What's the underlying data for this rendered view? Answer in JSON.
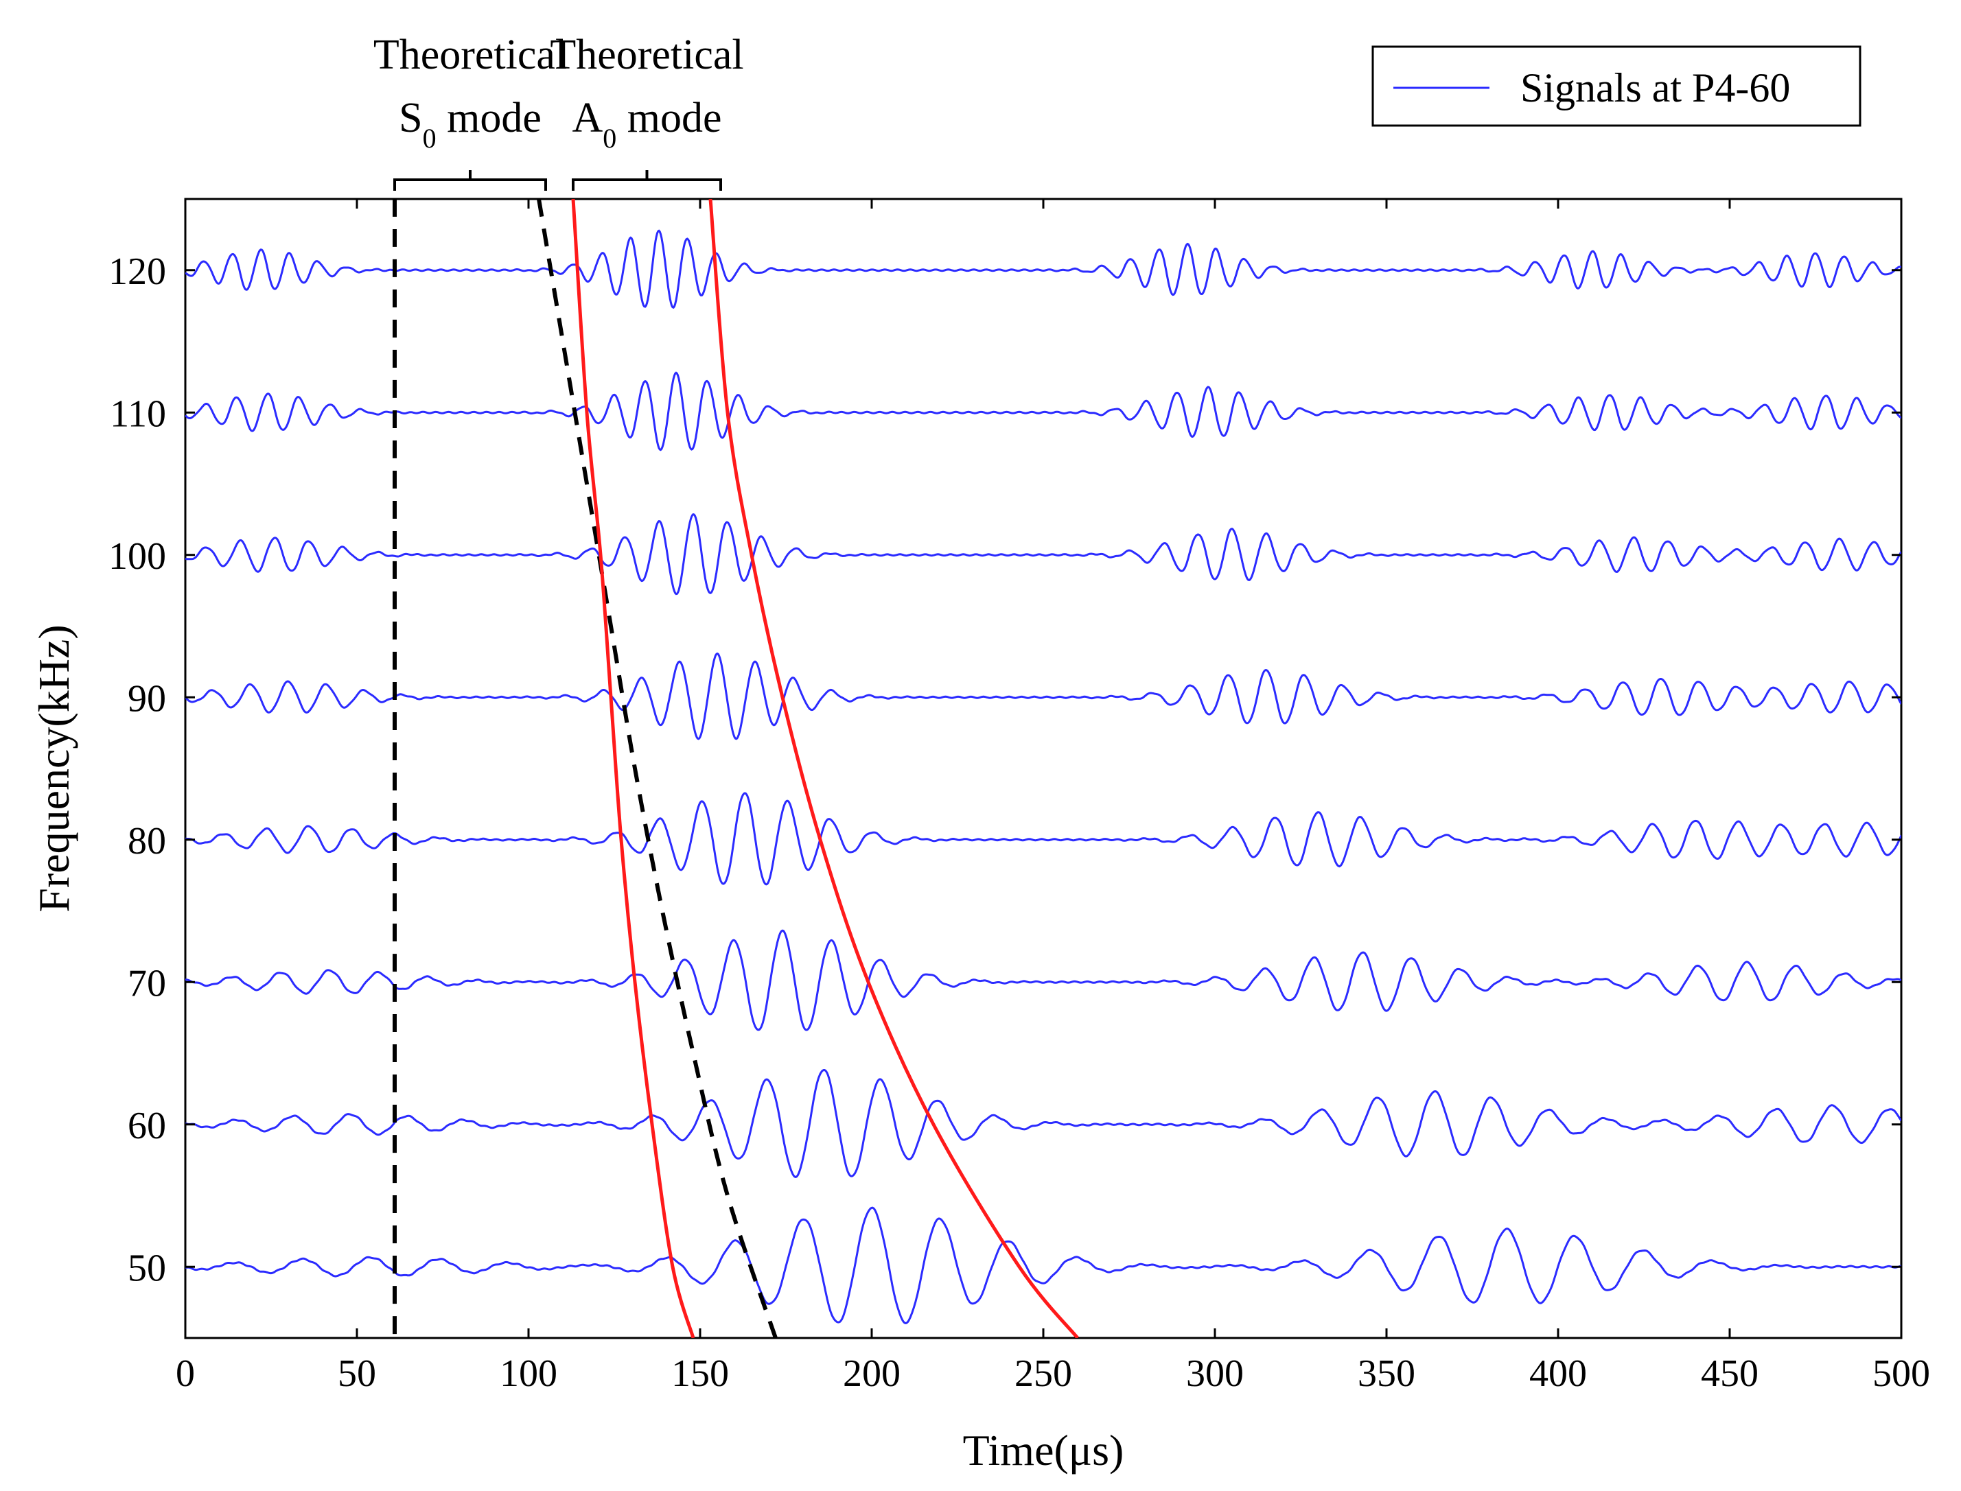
{
  "chart_data": {
    "type": "line",
    "title": "",
    "xlabel": "Time(μs)",
    "ylabel": "Frequency(kHz)",
    "xlim": [
      0,
      500
    ],
    "ylim": [
      45,
      125
    ],
    "xticks": [
      0,
      50,
      100,
      150,
      200,
      250,
      300,
      350,
      400,
      450,
      500
    ],
    "yticks": [
      50,
      60,
      70,
      80,
      90,
      100,
      110,
      120
    ],
    "grid": false,
    "legend": {
      "position": "top-right",
      "entries": [
        {
          "label": "Signals at P4-60",
          "color": "#2b2bff"
        }
      ]
    },
    "signal_color": "#2b2bff",
    "signal_amplitude_scale": 1,
    "signals": [
      {
        "frequency_khz": 120,
        "packets": [
          {
            "center": 22,
            "amp": 2.6
          },
          {
            "center": 138,
            "amp": 5.0
          },
          {
            "center": 292,
            "amp": 3.3
          },
          {
            "center": 410,
            "amp": 2.4
          },
          {
            "center": 475,
            "amp": 2.2
          }
        ]
      },
      {
        "frequency_khz": 110,
        "packets": [
          {
            "center": 24,
            "amp": 2.4
          },
          {
            "center": 143,
            "amp": 5.0
          },
          {
            "center": 298,
            "amp": 3.2
          },
          {
            "center": 415,
            "amp": 2.3
          },
          {
            "center": 478,
            "amp": 2.2
          }
        ]
      },
      {
        "frequency_khz": 100,
        "packets": [
          {
            "center": 26,
            "amp": 2.2
          },
          {
            "center": 148,
            "amp": 5.2
          },
          {
            "center": 305,
            "amp": 3.3
          },
          {
            "center": 422,
            "amp": 2.2
          },
          {
            "center": 482,
            "amp": 2.0
          }
        ]
      },
      {
        "frequency_khz": 90,
        "packets": [
          {
            "center": 30,
            "amp": 2.0
          },
          {
            "center": 155,
            "amp": 5.5
          },
          {
            "center": 315,
            "amp": 3.5
          },
          {
            "center": 430,
            "amp": 2.4
          },
          {
            "center": 485,
            "amp": 2.0
          }
        ]
      },
      {
        "frequency_khz": 80,
        "packets": [
          {
            "center": 36,
            "amp": 1.7
          },
          {
            "center": 163,
            "amp": 6.0
          },
          {
            "center": 330,
            "amp": 3.5
          },
          {
            "center": 440,
            "amp": 2.4
          },
          {
            "center": 490,
            "amp": 2.0
          }
        ]
      },
      {
        "frequency_khz": 70,
        "packets": [
          {
            "center": 42,
            "amp": 1.5
          },
          {
            "center": 174,
            "amp": 6.5
          },
          {
            "center": 343,
            "amp": 3.8
          },
          {
            "center": 455,
            "amp": 2.5
          }
        ]
      },
      {
        "frequency_khz": 60,
        "packets": [
          {
            "center": 48,
            "amp": 1.3
          },
          {
            "center": 186,
            "amp": 7.0
          },
          {
            "center": 364,
            "amp": 4.2
          },
          {
            "center": 480,
            "amp": 2.4
          }
        ]
      },
      {
        "frequency_khz": 50,
        "packets": [
          {
            "center": 54,
            "amp": 1.2
          },
          {
            "center": 200,
            "amp": 7.5
          },
          {
            "center": 385,
            "amp": 4.8
          }
        ]
      }
    ],
    "theoretical_curves": [
      {
        "name": "Theoretical S0 mode lower bound",
        "style": "dashed",
        "color": "#000000",
        "points": [
          [
            61,
            125
          ],
          [
            61,
            45
          ]
        ]
      },
      {
        "name": "Theoretical S0 mode upper bound",
        "style": "dashed",
        "color": "#000000",
        "points": [
          [
            103,
            125
          ],
          [
            110,
            115
          ],
          [
            117,
            105
          ],
          [
            124,
            95
          ],
          [
            131,
            85
          ],
          [
            139,
            75
          ],
          [
            148,
            65
          ],
          [
            158,
            55
          ],
          [
            172,
            45
          ]
        ]
      },
      {
        "name": "Theoretical A0 mode lower bound",
        "style": "solid",
        "color": "#ff1a1a",
        "points": [
          [
            113,
            125
          ],
          [
            117,
            110
          ],
          [
            121,
            100
          ],
          [
            124,
            90
          ],
          [
            127,
            80
          ],
          [
            131,
            70
          ],
          [
            136,
            60
          ],
          [
            142,
            50
          ],
          [
            148,
            45
          ]
        ]
      },
      {
        "name": "Theoretical A0 mode upper bound",
        "style": "solid",
        "color": "#ff1a1a",
        "points": [
          [
            153,
            125
          ],
          [
            158,
            110
          ],
          [
            165,
            100
          ],
          [
            174,
            90
          ],
          [
            185,
            80
          ],
          [
            199,
            70
          ],
          [
            218,
            60
          ],
          [
            243,
            50
          ],
          [
            260,
            45
          ]
        ]
      }
    ],
    "annotations": [
      {
        "line1": "Theoretical",
        "line2_main": "S",
        "line2_sub": "0",
        "line2_rest": " mode",
        "bracket_from": 61,
        "bracket_to": 105
      },
      {
        "line1": "Theoretical",
        "line2_main": "A",
        "line2_sub": "0",
        "line2_rest": " mode",
        "bracket_from": 113,
        "bracket_to": 156
      }
    ]
  }
}
